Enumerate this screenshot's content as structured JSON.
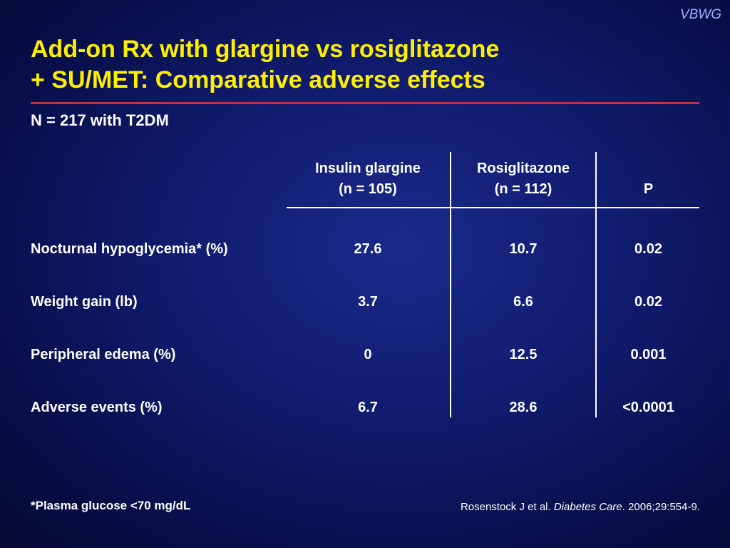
{
  "logo": "VBWG",
  "title": {
    "line1": "Add-on Rx with glargine vs rosiglitazone",
    "line2": "+ SU/MET: Comparative adverse effects"
  },
  "subtitle": "N = 217 with T2DM",
  "table": {
    "columns": [
      {
        "line1": "Insulin glargine",
        "line2": "(n = 105)"
      },
      {
        "line1": "Rosiglitazone",
        "line2": "(n = 112)"
      },
      {
        "line1": "",
        "line2": "P"
      }
    ],
    "rows": [
      {
        "label": "Nocturnal hypoglycemia* (%)",
        "values": [
          "27.6",
          "10.7",
          "0.02"
        ]
      },
      {
        "label": "Weight gain (lb)",
        "values": [
          "3.7",
          "6.6",
          "0.02"
        ]
      },
      {
        "label": "Peripheral edema (%)",
        "values": [
          "0",
          "12.5",
          "0.001"
        ]
      },
      {
        "label": "Adverse events (%)",
        "values": [
          "6.7",
          "28.6",
          "<0.0001"
        ]
      }
    ]
  },
  "footnote": "*Plasma glucose <70 mg/dL",
  "citation": {
    "authors": "Rosenstock J et al.",
    "journal": "Diabetes Care",
    "details": ". 2006;29:554-9."
  }
}
